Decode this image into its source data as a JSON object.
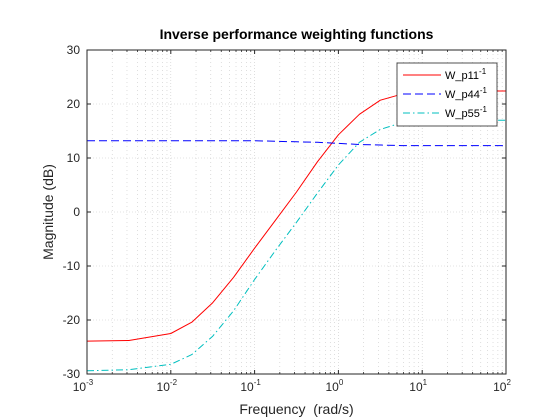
{
  "chart_data": {
    "type": "line",
    "title": "Inverse performance weighting functions",
    "xlabel": "Frequency  (rad/s)",
    "ylabel": "Magnitude (dB)",
    "xscale": "log",
    "xlim": [
      0.001,
      100
    ],
    "ylim": [
      -30,
      30
    ],
    "grid": "on (log minor grid, dotted)",
    "legend_location": "top-right",
    "x_ticks": [
      {
        "base": "10",
        "exp": "-3",
        "value": 0.001
      },
      {
        "base": "10",
        "exp": "-2",
        "value": 0.01
      },
      {
        "base": "10",
        "exp": "-1",
        "value": 0.1
      },
      {
        "base": "10",
        "exp": "0",
        "value": 1
      },
      {
        "base": "10",
        "exp": "1",
        "value": 10
      },
      {
        "base": "10",
        "exp": "2",
        "value": 100
      }
    ],
    "y_ticks": [
      "-30",
      "-20",
      "-10",
      "0",
      "10",
      "20",
      "30"
    ],
    "x": [
      0.001,
      0.00316,
      0.01,
      0.0178,
      0.0316,
      0.0562,
      0.1,
      0.178,
      0.316,
      0.562,
      1,
      1.78,
      3.16,
      5.62,
      10,
      31.6,
      100
    ],
    "series": [
      {
        "name": "W_p11",
        "superscript": "-1",
        "color": "#ff0000",
        "dash": "solid",
        "values": [
          -23.9,
          -23.8,
          -22.5,
          -20.4,
          -16.8,
          -12.1,
          -6.7,
          -1.5,
          3.7,
          9.3,
          14.3,
          18.1,
          20.7,
          21.8,
          22.2,
          22.4,
          22.4
        ]
      },
      {
        "name": "W_p44",
        "superscript": "-1",
        "color": "#0000ff",
        "dash": "dashed",
        "values": [
          13.2,
          13.2,
          13.2,
          13.2,
          13.2,
          13.2,
          13.2,
          13.1,
          13.0,
          12.9,
          12.7,
          12.5,
          12.4,
          12.3,
          12.3,
          12.3,
          12.3
        ]
      },
      {
        "name": "W_p55",
        "superscript": "-1",
        "color": "#00bfbf",
        "dash": "dashdot",
        "values": [
          -29.4,
          -29.2,
          -28.2,
          -26.4,
          -23.0,
          -18.3,
          -12.5,
          -7.1,
          -1.9,
          3.5,
          8.7,
          12.9,
          15.3,
          16.5,
          16.9,
          17.0,
          17.0
        ]
      }
    ]
  }
}
